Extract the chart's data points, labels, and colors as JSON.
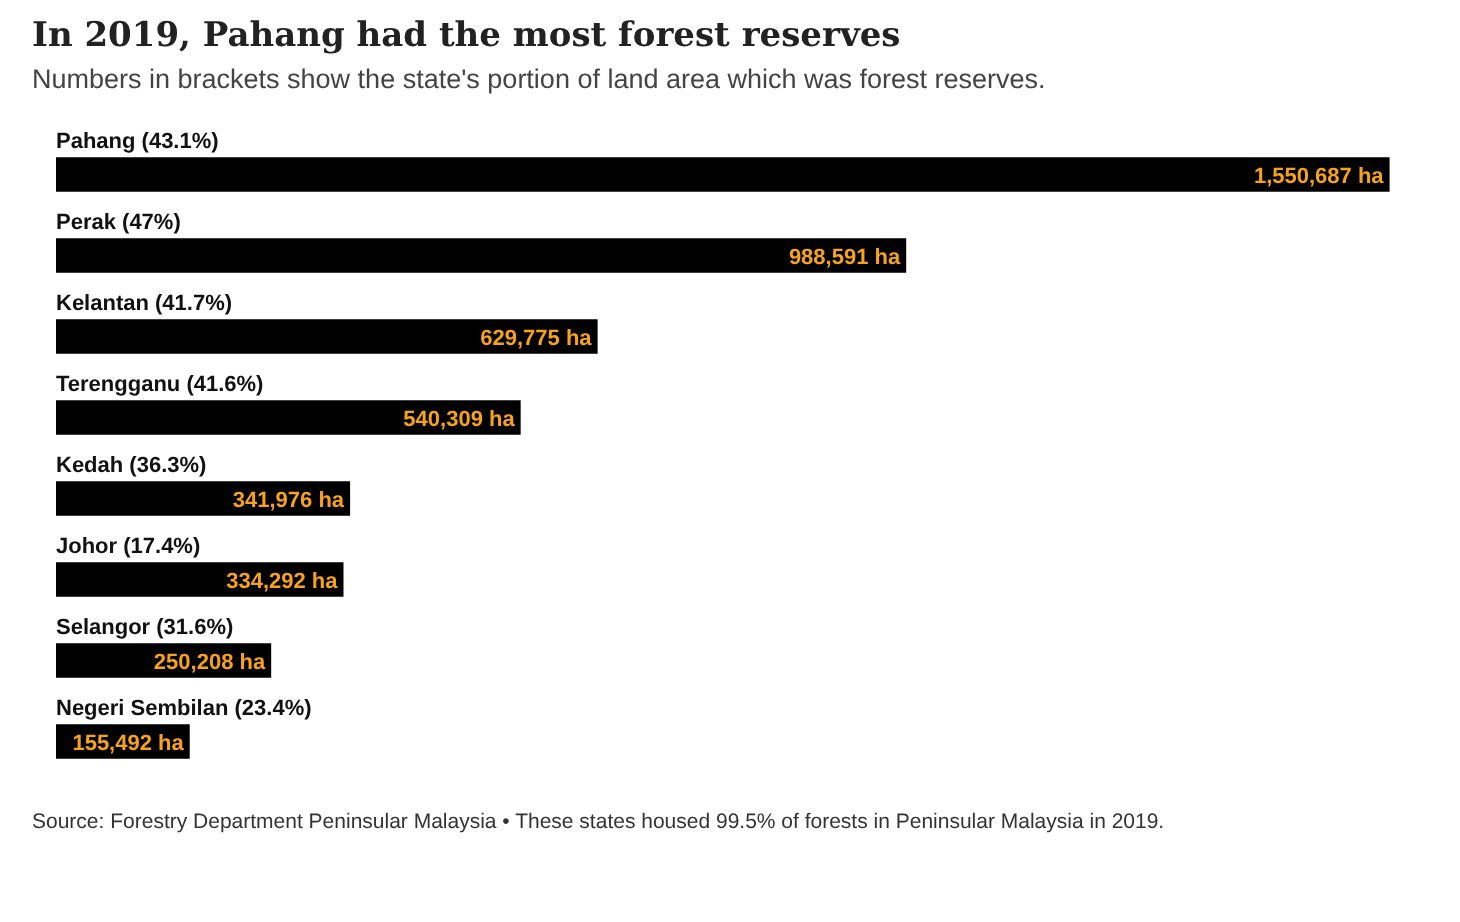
{
  "chart_data": {
    "type": "bar",
    "orientation": "horizontal",
    "title": "In 2019, Pahang had the most forest reserves",
    "subtitle": "Numbers in brackets show the state's portion of land area which was forest reserves.",
    "categories": [
      "Pahang (43.1%)",
      "Perak (47%)",
      "Kelantan (41.7%)",
      "Terengganu (41.6%)",
      "Kedah (36.3%)",
      "Johor (17.4%)",
      "Selangor (31.6%)",
      "Negeri Sembilan (23.4%)"
    ],
    "values": [
      1550687,
      988591,
      629775,
      540309,
      341976,
      334292,
      250208,
      155492
    ],
    "value_labels": [
      "1,550,687 ha",
      "988,591 ha",
      "629,775 ha",
      "540,309 ha",
      "341,976 ha",
      "334,292 ha",
      "250,208 ha",
      "155,492 ha"
    ],
    "color": "#000000",
    "legend": false,
    "annotations": [
      "Source: Forestry Department Peninsular Malaysia • These states housed 99.5% of forests in Peninsular Malaysia in 2019."
    ]
  }
}
